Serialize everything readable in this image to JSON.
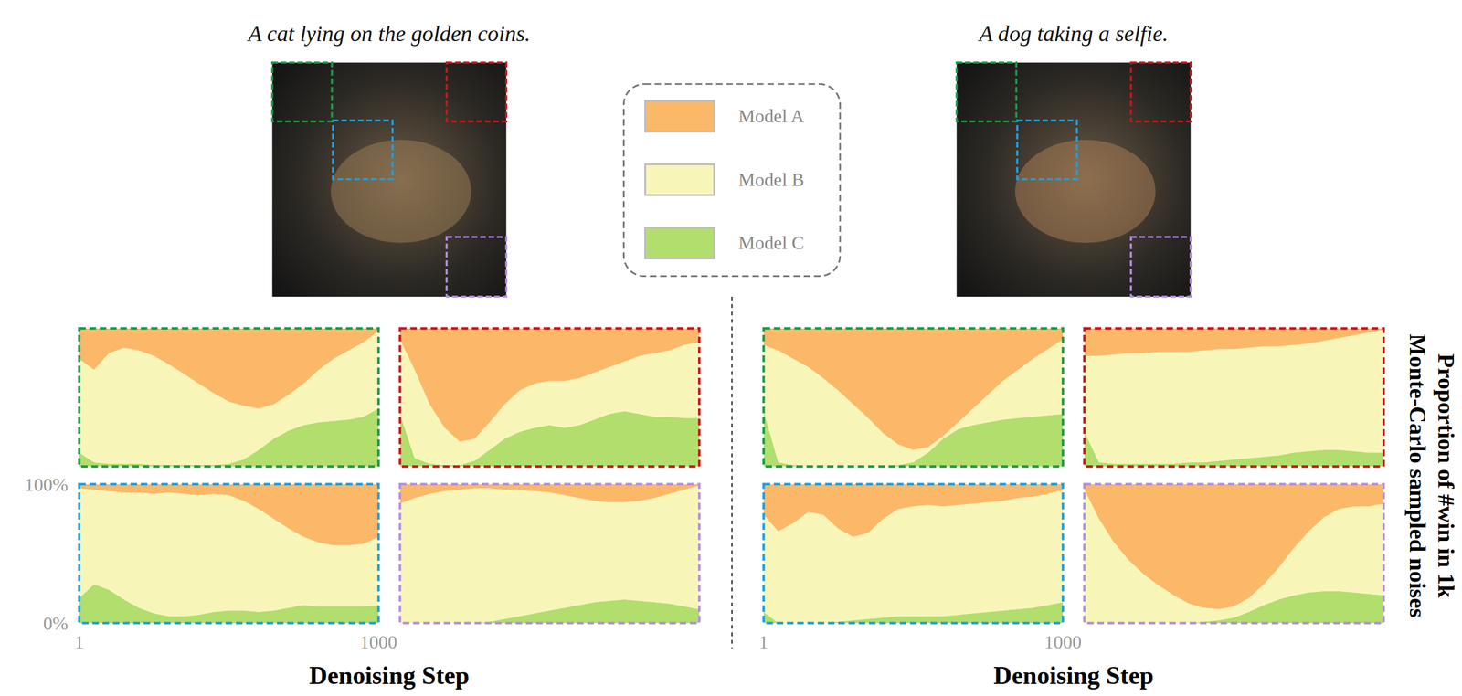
{
  "chart_data": [
    {
      "type": "area",
      "stacked": true,
      "color": "#1a9a4a",
      "tick_labels": false,
      "legend": "top",
      "x": [
        1,
        50,
        100,
        150,
        200,
        250,
        300,
        350,
        400,
        450,
        500,
        550,
        600,
        650,
        700,
        750,
        800,
        850,
        900,
        950,
        1000
      ],
      "xlim": [
        1,
        1000
      ],
      "ylim": [
        0,
        100
      ],
      "series": [
        {
          "name": "Model A",
          "color": "#fbb869",
          "values": [
            22,
            30,
            18,
            14,
            16,
            20,
            26,
            33,
            40,
            47,
            53,
            56,
            58,
            55,
            48,
            40,
            30,
            22,
            16,
            10,
            2
          ]
        },
        {
          "name": "Model B",
          "color": "#f7f6b8",
          "values": [
            68,
            67,
            80,
            84,
            82,
            79,
            73,
            66,
            59,
            52,
            45,
            39,
            30,
            25,
            26,
            30,
            38,
            45,
            50,
            54,
            56
          ]
        },
        {
          "name": "Model C",
          "color": "#b2de6d",
          "values": [
            10,
            3,
            2,
            2,
            2,
            1,
            1,
            1,
            1,
            1,
            2,
            5,
            12,
            20,
            26,
            30,
            32,
            33,
            34,
            36,
            42
          ]
        }
      ]
    },
    {
      "type": "area",
      "stacked": true,
      "color": "#c8171e",
      "tick_labels": false,
      "x": [
        1,
        50,
        100,
        150,
        200,
        250,
        300,
        350,
        400,
        450,
        500,
        550,
        600,
        650,
        700,
        750,
        800,
        850,
        900,
        950,
        1000
      ],
      "xlim": [
        1,
        1000
      ],
      "ylim": [
        0,
        100
      ],
      "series": [
        {
          "name": "Model A",
          "color": "#fbb869",
          "values": [
            8,
            30,
            55,
            72,
            82,
            80,
            68,
            55,
            45,
            40,
            38,
            38,
            36,
            32,
            28,
            24,
            20,
            18,
            16,
            12,
            10
          ]
        },
        {
          "name": "Model B",
          "color": "#f7f6b8",
          "values": [
            54,
            64,
            43,
            27,
            17,
            16,
            20,
            25,
            30,
            32,
            32,
            34,
            34,
            34,
            34,
            36,
            42,
            46,
            48,
            53,
            55
          ]
        },
        {
          "name": "Model C",
          "color": "#b2de6d",
          "values": [
            38,
            6,
            2,
            1,
            1,
            4,
            12,
            20,
            25,
            28,
            30,
            28,
            30,
            34,
            38,
            40,
            38,
            36,
            36,
            35,
            35
          ]
        }
      ]
    },
    {
      "type": "area",
      "stacked": true,
      "color": "#1ba1e2",
      "x": [
        1,
        50,
        100,
        150,
        200,
        250,
        300,
        350,
        400,
        450,
        500,
        550,
        600,
        650,
        700,
        750,
        800,
        850,
        900,
        950,
        1000
      ],
      "xlim": [
        1,
        1000
      ],
      "ylim": [
        0,
        100
      ],
      "xticks": [
        1,
        1000
      ],
      "yticks": [
        {
          "value": 100,
          "label": "100%"
        },
        {
          "value": 0,
          "label": "0%"
        }
      ],
      "x_label": "Denoising Step",
      "series": [
        {
          "name": "Model A",
          "color": "#fbb869",
          "values": [
            3,
            4,
            5,
            6,
            6,
            7,
            6,
            7,
            8,
            7,
            8,
            12,
            18,
            25,
            32,
            38,
            42,
            44,
            44,
            43,
            38
          ]
        },
        {
          "name": "Model B",
          "color": "#f7f6b8",
          "values": [
            79,
            68,
            71,
            77,
            83,
            86,
            89,
            88,
            86,
            85,
            83,
            79,
            74,
            66,
            57,
            49,
            46,
            44,
            44,
            45,
            49
          ]
        },
        {
          "name": "Model C",
          "color": "#b2de6d",
          "values": [
            18,
            28,
            24,
            17,
            11,
            7,
            5,
            5,
            6,
            8,
            9,
            9,
            8,
            9,
            11,
            13,
            12,
            12,
            12,
            12,
            13
          ]
        }
      ]
    },
    {
      "type": "area",
      "stacked": true,
      "color": "#b68ee0",
      "tick_labels": false,
      "x": [
        1,
        50,
        100,
        150,
        200,
        250,
        300,
        350,
        400,
        450,
        500,
        550,
        600,
        650,
        700,
        750,
        800,
        850,
        900,
        950,
        1000
      ],
      "xlim": [
        1,
        1000
      ],
      "ylim": [
        0,
        100
      ],
      "series": [
        {
          "name": "Model A",
          "color": "#fbb869",
          "values": [
            14,
            10,
            7,
            5,
            4,
            3,
            3,
            4,
            4,
            5,
            6,
            8,
            10,
            12,
            13,
            13,
            12,
            10,
            7,
            4,
            1
          ]
        },
        {
          "name": "Model B",
          "color": "#f7f6b8",
          "values": [
            86,
            90,
            93,
            95,
            96,
            97,
            96,
            93,
            91,
            88,
            85,
            81,
            77,
            73,
            71,
            70,
            72,
            75,
            79,
            84,
            89
          ]
        },
        {
          "name": "Model C",
          "color": "#b2de6d",
          "values": [
            0,
            0,
            0,
            0,
            0,
            0,
            1,
            3,
            5,
            7,
            9,
            11,
            13,
            15,
            16,
            17,
            16,
            15,
            14,
            12,
            10
          ]
        }
      ]
    },
    {
      "type": "area",
      "stacked": true,
      "color": "#1a9a4a",
      "tick_labels": false,
      "x": [
        1,
        50,
        100,
        150,
        200,
        250,
        300,
        350,
        400,
        450,
        500,
        550,
        600,
        650,
        700,
        750,
        800,
        850,
        900,
        950,
        1000
      ],
      "xlim": [
        1,
        1000
      ],
      "ylim": [
        0,
        100
      ],
      "series": [
        {
          "name": "Model A",
          "color": "#fbb869",
          "values": [
            12,
            16,
            22,
            28,
            36,
            45,
            55,
            65,
            76,
            84,
            88,
            86,
            78,
            68,
            58,
            48,
            38,
            30,
            22,
            15,
            8
          ]
        },
        {
          "name": "Model B",
          "color": "#f7f6b8",
          "values": [
            48,
            81,
            77,
            72,
            64,
            55,
            45,
            35,
            24,
            15,
            9,
            4,
            2,
            5,
            12,
            20,
            28,
            35,
            42,
            48,
            54
          ]
        },
        {
          "name": "Model C",
          "color": "#b2de6d",
          "values": [
            40,
            3,
            1,
            0,
            0,
            0,
            0,
            0,
            0,
            1,
            3,
            10,
            20,
            27,
            30,
            32,
            34,
            35,
            36,
            37,
            38
          ]
        }
      ]
    },
    {
      "type": "area",
      "stacked": true,
      "color": "#c8171e",
      "tick_labels": false,
      "x": [
        1,
        50,
        100,
        150,
        200,
        250,
        300,
        350,
        400,
        450,
        500,
        550,
        600,
        650,
        700,
        750,
        800,
        850,
        900,
        950,
        1000
      ],
      "xlim": [
        1,
        1000
      ],
      "ylim": [
        0,
        100
      ],
      "series": [
        {
          "name": "Model A",
          "color": "#fbb869",
          "values": [
            20,
            20,
            19,
            18,
            18,
            17,
            17,
            17,
            16,
            15,
            15,
            14,
            13,
            13,
            12,
            11,
            9,
            7,
            5,
            3,
            1
          ]
        },
        {
          "name": "Model B",
          "color": "#f7f6b8",
          "values": [
            55,
            77,
            79,
            80,
            80,
            81,
            81,
            80,
            81,
            81,
            80,
            80,
            80,
            79,
            78,
            78,
            79,
            81,
            84,
            87,
            89
          ]
        },
        {
          "name": "Model C",
          "color": "#b2de6d",
          "values": [
            25,
            3,
            2,
            2,
            2,
            2,
            2,
            3,
            3,
            4,
            5,
            6,
            7,
            8,
            10,
            11,
            12,
            12,
            11,
            10,
            10
          ]
        }
      ]
    },
    {
      "type": "area",
      "stacked": true,
      "color": "#1ba1e2",
      "tick_labels": "x",
      "x": [
        1,
        50,
        100,
        150,
        200,
        250,
        300,
        350,
        400,
        450,
        500,
        550,
        600,
        650,
        700,
        750,
        800,
        850,
        900,
        950,
        1000
      ],
      "xlim": [
        1,
        1000
      ],
      "ylim": [
        0,
        100
      ],
      "xticks": [
        1,
        1000
      ],
      "x_label": "Denoising Step",
      "series": [
        {
          "name": "Model A",
          "color": "#fbb869",
          "values": [
            22,
            34,
            28,
            20,
            22,
            32,
            38,
            35,
            25,
            18,
            16,
            15,
            16,
            15,
            14,
            13,
            12,
            10,
            9,
            7,
            4
          ]
        },
        {
          "name": "Model B",
          "color": "#f7f6b8",
          "values": [
            70,
            66,
            72,
            80,
            78,
            67,
            60,
            62,
            71,
            77,
            79,
            80,
            79,
            79,
            79,
            79,
            79,
            80,
            80,
            80,
            81
          ]
        },
        {
          "name": "Model C",
          "color": "#b2de6d",
          "values": [
            8,
            0,
            0,
            0,
            0,
            1,
            2,
            3,
            4,
            5,
            5,
            5,
            5,
            6,
            7,
            8,
            9,
            10,
            11,
            13,
            15
          ]
        }
      ]
    },
    {
      "type": "area",
      "stacked": true,
      "color": "#b68ee0",
      "tick_labels": false,
      "x": [
        1,
        50,
        100,
        150,
        200,
        250,
        300,
        350,
        400,
        450,
        500,
        550,
        600,
        650,
        700,
        750,
        800,
        850,
        900,
        950,
        1000
      ],
      "xlim": [
        1,
        1000
      ],
      "ylim": [
        0,
        100
      ],
      "series": [
        {
          "name": "Model A",
          "color": "#fbb869",
          "values": [
            4,
            25,
            42,
            55,
            65,
            73,
            80,
            86,
            89,
            90,
            88,
            82,
            72,
            60,
            46,
            34,
            24,
            18,
            16,
            16,
            14
          ]
        },
        {
          "name": "Model B",
          "color": "#f7f6b8",
          "values": [
            96,
            75,
            58,
            45,
            35,
            27,
            20,
            14,
            10,
            8,
            8,
            10,
            15,
            23,
            34,
            44,
            53,
            59,
            62,
            63,
            66
          ]
        },
        {
          "name": "Model C",
          "color": "#b2de6d",
          "values": [
            0,
            0,
            0,
            0,
            0,
            0,
            0,
            0,
            1,
            2,
            4,
            8,
            13,
            17,
            20,
            22,
            23,
            23,
            22,
            21,
            20
          ]
        }
      ]
    }
  ],
  "figure": {
    "captions": [
      "A cat lying on the golden coins.",
      "A dog taking a selfie."
    ],
    "y_label": "Proportion of #win in 1k Monte-Carlo sampled noises"
  }
}
